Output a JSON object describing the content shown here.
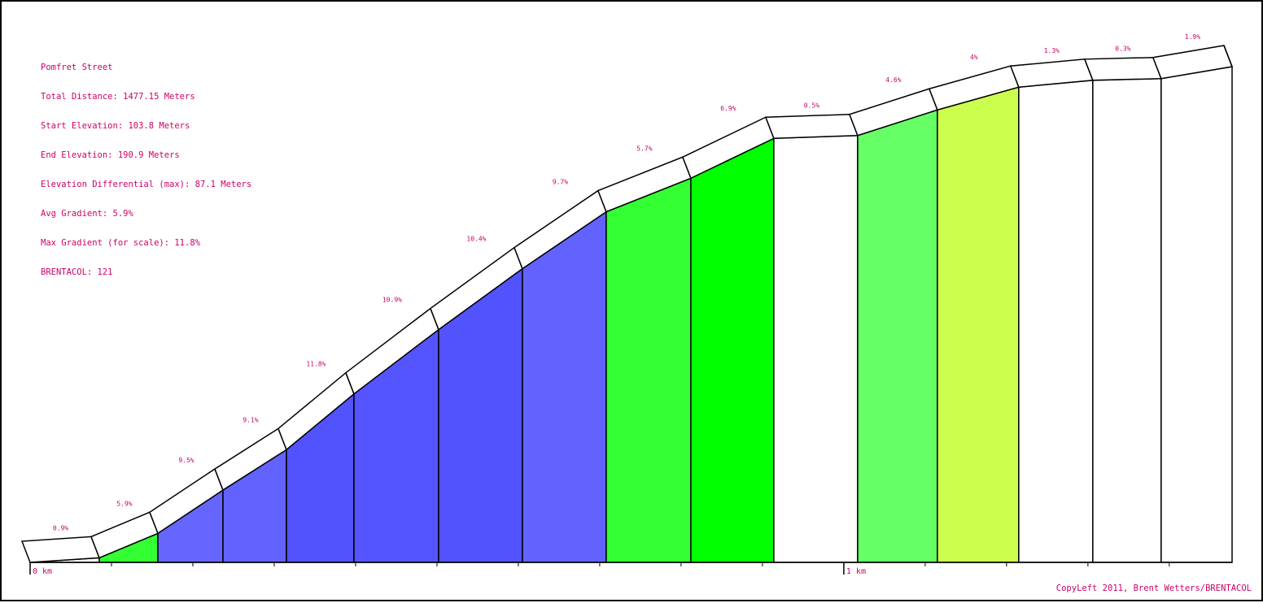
{
  "info": {
    "name": "Pomfret Street",
    "total_distance": "Total Distance: 1477.15 Meters",
    "start_elevation": "Start Elevation: 103.8 Meters",
    "end_elevation": "End Elevation: 190.9 Meters",
    "elevation_differential": "Elevation Differential (max): 87.1 Meters",
    "avg_gradient": "Avg Gradient: 5.9%",
    "max_gradient": "Max Gradient (for scale): 11.8%",
    "brentacol": "BRENTACOL: 121"
  },
  "copyright": "CopyLeft 2011, Brent Wetters/BRENTACOL",
  "chart_data": {
    "type": "area",
    "title": "Pomfret Street",
    "x_unit": "m",
    "y_unit": "m",
    "xlim": [
      0,
      1477.15
    ],
    "ylim": [
      103.8,
      190.9
    ],
    "x_tick_labels": [
      {
        "x": 0,
        "label": "0 km"
      },
      {
        "x": 1000,
        "label": "1 km"
      }
    ],
    "x_minor_tick_step": 100,
    "segments": [
      {
        "x0": 0,
        "x1": 85,
        "y0": 103.8,
        "y1": 104.6,
        "gradient_label": "0.9%",
        "color": "#ffffff"
      },
      {
        "x0": 85,
        "x1": 157,
        "y0": 104.6,
        "y1": 108.9,
        "gradient_label": "5.9%",
        "color": "#33ff33"
      },
      {
        "x0": 157,
        "x1": 237,
        "y0": 108.9,
        "y1": 116.5,
        "gradient_label": "9.5%",
        "color": "#6666ff"
      },
      {
        "x0": 237,
        "x1": 315,
        "y0": 116.5,
        "y1": 123.6,
        "gradient_label": "9.1%",
        "color": "#6262ff"
      },
      {
        "x0": 315,
        "x1": 398,
        "y0": 123.6,
        "y1": 133.4,
        "gradient_label": "11.8%",
        "color": "#5252ff"
      },
      {
        "x0": 398,
        "x1": 502,
        "y0": 133.4,
        "y1": 144.7,
        "gradient_label": "10.9%",
        "color": "#5555ff"
      },
      {
        "x0": 502,
        "x1": 605,
        "y0": 144.7,
        "y1": 155.4,
        "gradient_label": "10.4%",
        "color": "#5252ff"
      },
      {
        "x0": 605,
        "x1": 708,
        "y0": 155.4,
        "y1": 165.4,
        "gradient_label": "9.7%",
        "color": "#6262ff"
      },
      {
        "x0": 708,
        "x1": 812,
        "y0": 165.4,
        "y1": 171.3,
        "gradient_label": "5.7%",
        "color": "#33ff33"
      },
      {
        "x0": 812,
        "x1": 914,
        "y0": 171.3,
        "y1": 178.3,
        "gradient_label": "6.9%",
        "color": "#00ff00"
      },
      {
        "x0": 914,
        "x1": 1017,
        "y0": 178.3,
        "y1": 178.8,
        "gradient_label": "0.5%",
        "color": "#ffffff"
      },
      {
        "x0": 1017,
        "x1": 1115,
        "y0": 178.8,
        "y1": 183.3,
        "gradient_label": "4.6%",
        "color": "#66ff66"
      },
      {
        "x0": 1115,
        "x1": 1215,
        "y0": 183.3,
        "y1": 187.3,
        "gradient_label": "4%",
        "color": "#ccff4d"
      },
      {
        "x0": 1215,
        "x1": 1306,
        "y0": 187.3,
        "y1": 188.5,
        "gradient_label": "1.3%",
        "color": "#ffffff"
      },
      {
        "x0": 1306,
        "x1": 1390,
        "y0": 188.5,
        "y1": 188.8,
        "gradient_label": "0.3%",
        "color": "#ffffff"
      },
      {
        "x0": 1390,
        "x1": 1477.15,
        "y0": 188.8,
        "y1": 190.9,
        "gradient_label": "1.9%",
        "color": "#ffffff"
      }
    ]
  }
}
